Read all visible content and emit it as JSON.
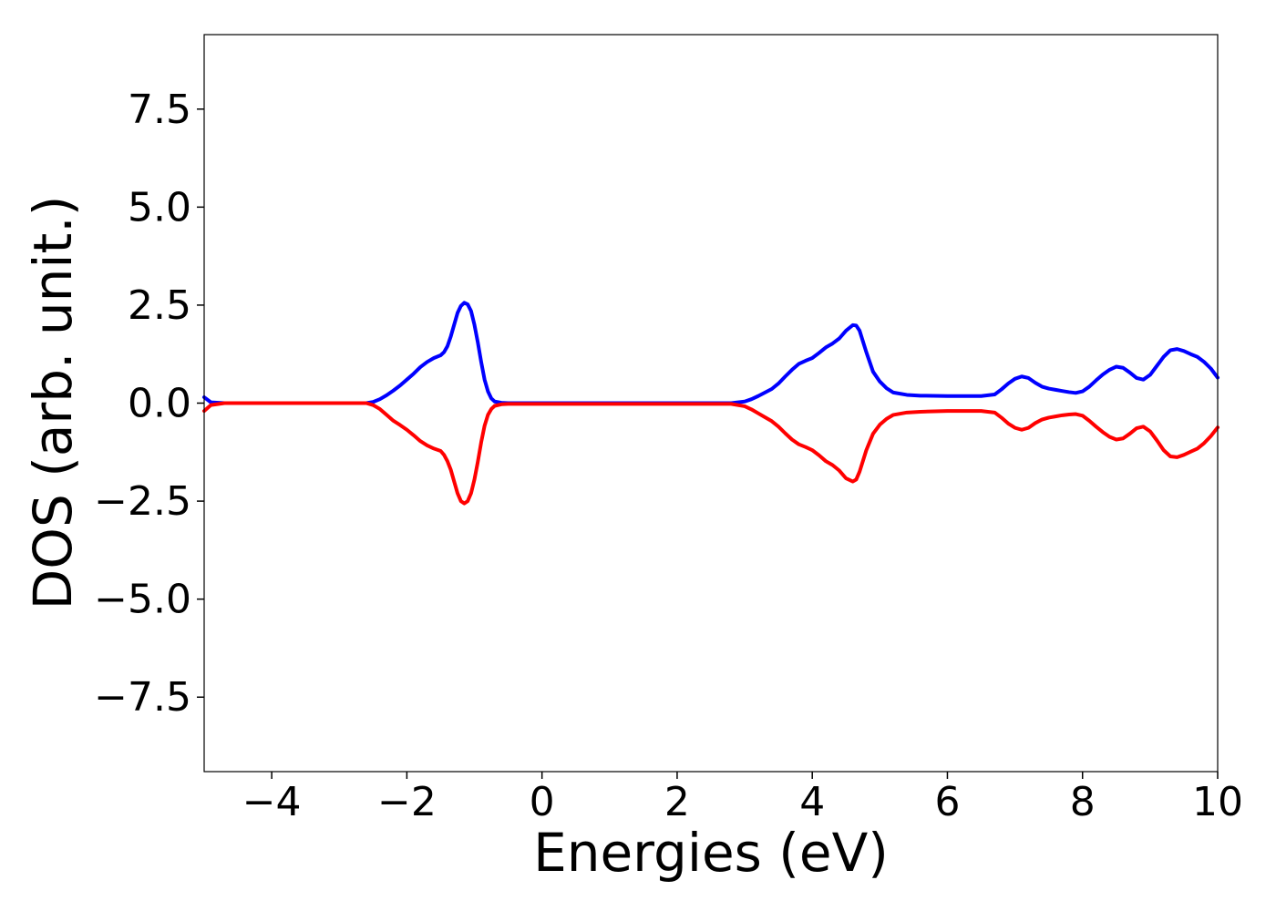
{
  "chart_data": {
    "type": "line",
    "title": "",
    "xlabel": "Energies (eV)",
    "ylabel": "DOS (arb. unit.)",
    "xlim": [
      -5,
      10
    ],
    "ylim": [
      -9.4,
      9.4
    ],
    "grid": false,
    "legend": "none",
    "xticks": [
      -4,
      -2,
      0,
      2,
      4,
      6,
      8,
      10
    ],
    "xtick_labels": [
      "−4",
      "−2",
      "0",
      "2",
      "4",
      "6",
      "8",
      "10"
    ],
    "yticks": [
      7.5,
      5.0,
      2.5,
      0.0,
      -2.5,
      -5.0,
      -7.5
    ],
    "ytick_labels": [
      "7.5",
      "5.0",
      "2.5",
      "0.0",
      "−2.5",
      "−5.0",
      "−7.5"
    ],
    "series": [
      {
        "color": "#0000ff",
        "points": [
          [
            -5.0,
            0.15
          ],
          [
            -4.9,
            0.02
          ],
          [
            -4.7,
            0.0
          ],
          [
            -3.0,
            0.0
          ],
          [
            -2.6,
            0.0
          ],
          [
            -2.5,
            0.03
          ],
          [
            -2.4,
            0.1
          ],
          [
            -2.3,
            0.2
          ],
          [
            -2.2,
            0.32
          ],
          [
            -2.1,
            0.45
          ],
          [
            -2.0,
            0.6
          ],
          [
            -1.9,
            0.75
          ],
          [
            -1.8,
            0.92
          ],
          [
            -1.7,
            1.05
          ],
          [
            -1.6,
            1.15
          ],
          [
            -1.5,
            1.22
          ],
          [
            -1.45,
            1.3
          ],
          [
            -1.4,
            1.45
          ],
          [
            -1.35,
            1.7
          ],
          [
            -1.3,
            2.0
          ],
          [
            -1.25,
            2.3
          ],
          [
            -1.2,
            2.48
          ],
          [
            -1.15,
            2.56
          ],
          [
            -1.1,
            2.52
          ],
          [
            -1.05,
            2.35
          ],
          [
            -1.0,
            2.0
          ],
          [
            -0.95,
            1.55
          ],
          [
            -0.9,
            1.05
          ],
          [
            -0.85,
            0.6
          ],
          [
            -0.8,
            0.3
          ],
          [
            -0.75,
            0.12
          ],
          [
            -0.7,
            0.04
          ],
          [
            -0.6,
            0.01
          ],
          [
            -0.5,
            0.0
          ],
          [
            2.8,
            0.0
          ],
          [
            3.0,
            0.04
          ],
          [
            3.1,
            0.1
          ],
          [
            3.2,
            0.18
          ],
          [
            3.3,
            0.27
          ],
          [
            3.4,
            0.36
          ],
          [
            3.5,
            0.5
          ],
          [
            3.6,
            0.68
          ],
          [
            3.7,
            0.85
          ],
          [
            3.8,
            1.0
          ],
          [
            3.9,
            1.08
          ],
          [
            4.0,
            1.15
          ],
          [
            4.1,
            1.28
          ],
          [
            4.2,
            1.42
          ],
          [
            4.3,
            1.52
          ],
          [
            4.4,
            1.65
          ],
          [
            4.5,
            1.85
          ],
          [
            4.6,
            1.99
          ],
          [
            4.65,
            1.98
          ],
          [
            4.7,
            1.85
          ],
          [
            4.8,
            1.3
          ],
          [
            4.9,
            0.8
          ],
          [
            5.0,
            0.55
          ],
          [
            5.1,
            0.38
          ],
          [
            5.2,
            0.27
          ],
          [
            5.4,
            0.21
          ],
          [
            5.6,
            0.19
          ],
          [
            6.0,
            0.18
          ],
          [
            6.5,
            0.18
          ],
          [
            6.7,
            0.22
          ],
          [
            6.8,
            0.35
          ],
          [
            6.9,
            0.5
          ],
          [
            7.0,
            0.62
          ],
          [
            7.1,
            0.68
          ],
          [
            7.2,
            0.64
          ],
          [
            7.3,
            0.52
          ],
          [
            7.4,
            0.42
          ],
          [
            7.5,
            0.37
          ],
          [
            7.6,
            0.34
          ],
          [
            7.7,
            0.31
          ],
          [
            7.8,
            0.28
          ],
          [
            7.9,
            0.26
          ],
          [
            8.0,
            0.3
          ],
          [
            8.1,
            0.42
          ],
          [
            8.2,
            0.58
          ],
          [
            8.3,
            0.73
          ],
          [
            8.4,
            0.85
          ],
          [
            8.5,
            0.93
          ],
          [
            8.6,
            0.9
          ],
          [
            8.7,
            0.78
          ],
          [
            8.8,
            0.64
          ],
          [
            8.9,
            0.6
          ],
          [
            9.0,
            0.72
          ],
          [
            9.1,
            0.95
          ],
          [
            9.2,
            1.18
          ],
          [
            9.3,
            1.35
          ],
          [
            9.4,
            1.38
          ],
          [
            9.5,
            1.33
          ],
          [
            9.6,
            1.25
          ],
          [
            9.7,
            1.18
          ],
          [
            9.8,
            1.05
          ],
          [
            9.9,
            0.88
          ],
          [
            10.0,
            0.65
          ]
        ]
      },
      {
        "color": "#ff0000",
        "points": [
          [
            -5.0,
            -0.2
          ],
          [
            -4.9,
            -0.05
          ],
          [
            -4.7,
            0.0
          ],
          [
            -3.0,
            0.0
          ],
          [
            -2.6,
            0.0
          ],
          [
            -2.5,
            -0.05
          ],
          [
            -2.4,
            -0.15
          ],
          [
            -2.3,
            -0.3
          ],
          [
            -2.2,
            -0.45
          ],
          [
            -2.1,
            -0.56
          ],
          [
            -2.0,
            -0.68
          ],
          [
            -1.9,
            -0.82
          ],
          [
            -1.8,
            -0.97
          ],
          [
            -1.7,
            -1.08
          ],
          [
            -1.6,
            -1.16
          ],
          [
            -1.5,
            -1.22
          ],
          [
            -1.45,
            -1.32
          ],
          [
            -1.4,
            -1.48
          ],
          [
            -1.35,
            -1.7
          ],
          [
            -1.3,
            -2.0
          ],
          [
            -1.25,
            -2.3
          ],
          [
            -1.2,
            -2.5
          ],
          [
            -1.15,
            -2.56
          ],
          [
            -1.1,
            -2.5
          ],
          [
            -1.05,
            -2.3
          ],
          [
            -1.0,
            -1.95
          ],
          [
            -0.95,
            -1.5
          ],
          [
            -0.9,
            -1.0
          ],
          [
            -0.85,
            -0.58
          ],
          [
            -0.8,
            -0.3
          ],
          [
            -0.75,
            -0.15
          ],
          [
            -0.7,
            -0.07
          ],
          [
            -0.6,
            -0.03
          ],
          [
            -0.5,
            -0.02
          ],
          [
            2.8,
            -0.02
          ],
          [
            3.0,
            -0.08
          ],
          [
            3.1,
            -0.16
          ],
          [
            3.2,
            -0.26
          ],
          [
            3.3,
            -0.36
          ],
          [
            3.4,
            -0.46
          ],
          [
            3.5,
            -0.6
          ],
          [
            3.6,
            -0.77
          ],
          [
            3.7,
            -0.93
          ],
          [
            3.8,
            -1.05
          ],
          [
            3.9,
            -1.12
          ],
          [
            4.0,
            -1.2
          ],
          [
            4.1,
            -1.33
          ],
          [
            4.2,
            -1.48
          ],
          [
            4.3,
            -1.58
          ],
          [
            4.4,
            -1.72
          ],
          [
            4.5,
            -1.92
          ],
          [
            4.6,
            -2.0
          ],
          [
            4.65,
            -1.95
          ],
          [
            4.7,
            -1.75
          ],
          [
            4.8,
            -1.2
          ],
          [
            4.9,
            -0.78
          ],
          [
            5.0,
            -0.55
          ],
          [
            5.1,
            -0.4
          ],
          [
            5.2,
            -0.3
          ],
          [
            5.4,
            -0.24
          ],
          [
            5.6,
            -0.22
          ],
          [
            6.0,
            -0.2
          ],
          [
            6.5,
            -0.2
          ],
          [
            6.7,
            -0.24
          ],
          [
            6.8,
            -0.37
          ],
          [
            6.9,
            -0.52
          ],
          [
            7.0,
            -0.63
          ],
          [
            7.1,
            -0.68
          ],
          [
            7.2,
            -0.63
          ],
          [
            7.3,
            -0.51
          ],
          [
            7.4,
            -0.42
          ],
          [
            7.5,
            -0.37
          ],
          [
            7.6,
            -0.34
          ],
          [
            7.7,
            -0.31
          ],
          [
            7.8,
            -0.29
          ],
          [
            7.9,
            -0.28
          ],
          [
            8.0,
            -0.32
          ],
          [
            8.1,
            -0.45
          ],
          [
            8.2,
            -0.6
          ],
          [
            8.3,
            -0.74
          ],
          [
            8.4,
            -0.86
          ],
          [
            8.5,
            -0.93
          ],
          [
            8.6,
            -0.9
          ],
          [
            8.7,
            -0.78
          ],
          [
            8.8,
            -0.64
          ],
          [
            8.9,
            -0.6
          ],
          [
            9.0,
            -0.72
          ],
          [
            9.1,
            -0.95
          ],
          [
            9.2,
            -1.2
          ],
          [
            9.3,
            -1.36
          ],
          [
            9.4,
            -1.38
          ],
          [
            9.5,
            -1.32
          ],
          [
            9.6,
            -1.24
          ],
          [
            9.7,
            -1.16
          ],
          [
            9.8,
            -1.02
          ],
          [
            9.9,
            -0.84
          ],
          [
            10.0,
            -0.62
          ]
        ]
      }
    ]
  }
}
